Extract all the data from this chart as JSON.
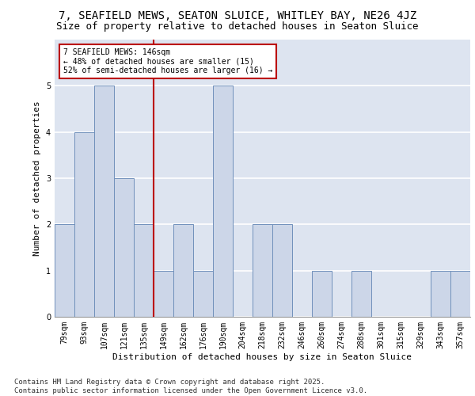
{
  "title1": "7, SEAFIELD MEWS, SEATON SLUICE, WHITLEY BAY, NE26 4JZ",
  "title2": "Size of property relative to detached houses in Seaton Sluice",
  "xlabel": "Distribution of detached houses by size in Seaton Sluice",
  "ylabel": "Number of detached properties",
  "categories": [
    "79sqm",
    "93sqm",
    "107sqm",
    "121sqm",
    "135sqm",
    "149sqm",
    "162sqm",
    "176sqm",
    "190sqm",
    "204sqm",
    "218sqm",
    "232sqm",
    "246sqm",
    "260sqm",
    "274sqm",
    "288sqm",
    "301sqm",
    "315sqm",
    "329sqm",
    "343sqm",
    "357sqm"
  ],
  "values": [
    2,
    4,
    5,
    3,
    2,
    1,
    2,
    1,
    5,
    0,
    2,
    2,
    0,
    1,
    0,
    1,
    0,
    0,
    0,
    1,
    1
  ],
  "bar_color": "#ccd6e8",
  "bar_edge_color": "#7090bb",
  "background_color": "#dde4f0",
  "grid_color": "#ffffff",
  "vline_x_pos": 4.5,
  "vline_color": "#bb0000",
  "annotation_box_text": "7 SEAFIELD MEWS: 146sqm\n← 48% of detached houses are smaller (15)\n52% of semi-detached houses are larger (16) →",
  "annotation_box_color": "#bb0000",
  "ylim": [
    0,
    6
  ],
  "yticks": [
    0,
    1,
    2,
    3,
    4,
    5
  ],
  "footer_text": "Contains HM Land Registry data © Crown copyright and database right 2025.\nContains public sector information licensed under the Open Government Licence v3.0.",
  "title_fontsize": 10,
  "subtitle_fontsize": 9,
  "axis_label_fontsize": 8,
  "tick_fontsize": 7,
  "footer_fontsize": 6.5
}
